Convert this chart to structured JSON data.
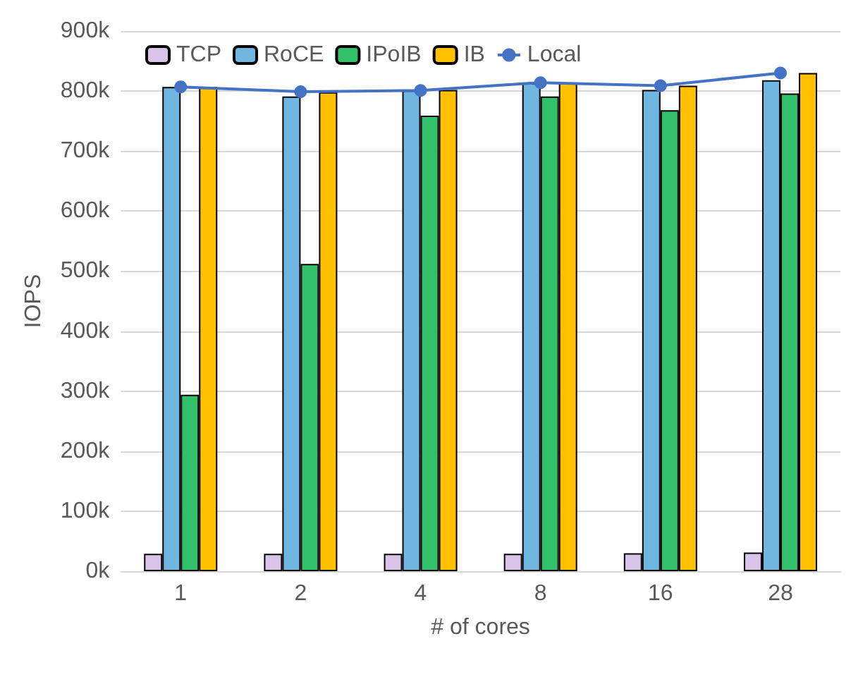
{
  "chart_data": {
    "type": "bar",
    "xlabel": "# of cores",
    "ylabel": "IOPS",
    "categories": [
      "1",
      "2",
      "4",
      "8",
      "16",
      "28"
    ],
    "series": [
      {
        "name": "TCP",
        "color": "#d9c3e9",
        "values": [
          29000,
          29000,
          29000,
          29000,
          30000,
          31000
        ]
      },
      {
        "name": "RoCE",
        "color": "#6fb7e0",
        "values": [
          807000,
          791000,
          801000,
          813000,
          802000,
          818000
        ]
      },
      {
        "name": "IPoIB",
        "color": "#33c06a",
        "values": [
          294000,
          512000,
          759000,
          791000,
          768000,
          796000
        ]
      },
      {
        "name": "IB",
        "color": "#ffc000",
        "values": [
          807000,
          798000,
          802000,
          814000,
          809000,
          830000
        ]
      },
      {
        "name": "Local",
        "type": "line",
        "color": "#4472c4",
        "marker": "circle",
        "values": [
          807000,
          799000,
          801000,
          814000,
          809000,
          830000
        ]
      }
    ],
    "ylim": [
      0,
      900000
    ],
    "yticks": [
      {
        "value": 0,
        "label": "0k"
      },
      {
        "value": 100000,
        "label": "100k"
      },
      {
        "value": 200000,
        "label": "200k"
      },
      {
        "value": 300000,
        "label": "300k"
      },
      {
        "value": 400000,
        "label": "400k"
      },
      {
        "value": 500000,
        "label": "500k"
      },
      {
        "value": 600000,
        "label": "600k"
      },
      {
        "value": 700000,
        "label": "700k"
      },
      {
        "value": 800000,
        "label": "800k"
      },
      {
        "value": 900000,
        "label": "900k"
      }
    ],
    "grid": "y",
    "legend": "top"
  }
}
